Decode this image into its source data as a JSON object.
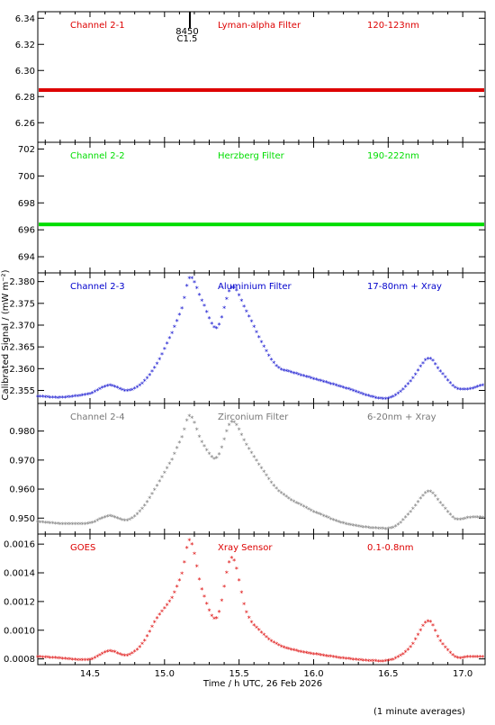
{
  "chart_data": {
    "type": "scatter",
    "stacked_panels": 5,
    "x_axis": {
      "label": "Time / h UTC, 26 Feb 2026",
      "range": [
        14.15,
        17.15
      ],
      "ticks": [
        "14.5",
        "15.0",
        "15.5",
        "16.0",
        "16.5",
        "17.0"
      ]
    },
    "y_axis_label": "Calibrated Signal / (mW m⁻²)",
    "footnote": "(1 minute averages)",
    "event_marker": {
      "x": 15.17,
      "label_top": "8450",
      "label_bottom": "C1.5"
    },
    "panels": [
      {
        "channel": "Channel 2-1",
        "filter": "Lyman-alpha Filter",
        "band": "120-123nm",
        "color": "#dd0000",
        "ylim": [
          6.245,
          6.345
        ],
        "yticks": [
          "6.26",
          "6.28",
          "6.30",
          "6.32",
          "6.34"
        ],
        "shape": "flat",
        "flat_value": 6.285
      },
      {
        "channel": "Channel 2-2",
        "filter": "Herzberg Filter",
        "band": "190-222nm",
        "color": "#00dd00",
        "ylim": [
          692.8,
          702.5
        ],
        "yticks": [
          "694",
          "696",
          "698",
          "700",
          "702"
        ],
        "shape": "flat",
        "flat_value": 696.4
      },
      {
        "channel": "Channel 2-3",
        "filter": "Aluminium Filter",
        "band": "17-80nm + Xray",
        "color": "#0000cc",
        "ylim": [
          2.352,
          2.382
        ],
        "yticks": [
          "2.355",
          "2.360",
          "2.365",
          "2.370",
          "2.375",
          "2.380"
        ],
        "shape": "flare",
        "x": [
          14.15,
          14.3,
          14.5,
          14.63,
          14.75,
          14.85,
          14.95,
          15.05,
          15.12,
          15.17,
          15.25,
          15.35,
          15.45,
          15.55,
          15.65,
          15.75,
          15.85,
          16.0,
          16.2,
          16.45,
          16.55,
          16.65,
          16.77,
          16.85,
          16.95,
          17.05,
          17.15
        ],
        "y": [
          2.3535,
          2.3532,
          2.3541,
          2.356,
          2.3548,
          2.3565,
          2.361,
          2.368,
          2.374,
          2.3808,
          2.3755,
          2.3692,
          2.3785,
          2.373,
          2.366,
          2.3605,
          2.359,
          2.3575,
          2.3555,
          2.353,
          2.3538,
          2.357,
          2.3622,
          2.3592,
          2.3555,
          2.3552,
          2.3562
        ]
      },
      {
        "channel": "Channel 2-4",
        "filter": "Zirconium Filter",
        "band": "6-20nm + Xray",
        "color": "#777777",
        "ylim": [
          0.9445,
          0.9895
        ],
        "yticks": [
          "0.950",
          "0.960",
          "0.970",
          "0.980"
        ],
        "shape": "flare",
        "x": [
          14.15,
          14.3,
          14.5,
          14.63,
          14.75,
          14.85,
          14.95,
          15.05,
          15.12,
          15.17,
          15.25,
          15.35,
          15.45,
          15.55,
          15.65,
          15.75,
          15.85,
          16.0,
          16.2,
          16.45,
          16.55,
          16.65,
          16.77,
          16.85,
          16.95,
          17.05,
          17.15
        ],
        "y": [
          0.9485,
          0.9478,
          0.948,
          0.9505,
          0.949,
          0.953,
          0.961,
          0.97,
          0.978,
          0.985,
          0.976,
          0.9705,
          0.983,
          0.975,
          0.967,
          0.96,
          0.956,
          0.952,
          0.948,
          0.9462,
          0.947,
          0.952,
          0.959,
          0.955,
          0.9495,
          0.95,
          0.95
        ]
      },
      {
        "channel": "GOES",
        "filter": "Xray Sensor",
        "band": "0.1-0.8nm",
        "color": "#dd0000",
        "ylim": [
          0.00076,
          0.00167
        ],
        "yticks": [
          "0.0008",
          "0.0010",
          "0.0012",
          "0.0014",
          "0.0016"
        ],
        "shape": "flare",
        "x": [
          14.15,
          14.3,
          14.5,
          14.63,
          14.75,
          14.85,
          14.95,
          15.05,
          15.12,
          15.17,
          15.25,
          15.35,
          15.45,
          15.55,
          15.65,
          15.75,
          15.85,
          16.0,
          16.2,
          16.45,
          16.55,
          16.65,
          16.77,
          16.85,
          16.95,
          17.05,
          17.15
        ],
        "y": [
          0.00081,
          0.0008,
          0.00079,
          0.00085,
          0.00082,
          0.0009,
          0.00108,
          0.00122,
          0.0014,
          0.00162,
          0.00128,
          0.00108,
          0.0015,
          0.00112,
          0.00098,
          0.0009,
          0.00086,
          0.00083,
          0.0008,
          0.00078,
          0.0008,
          0.00088,
          0.00106,
          0.00092,
          0.00081,
          0.00081,
          0.00081
        ]
      }
    ]
  }
}
